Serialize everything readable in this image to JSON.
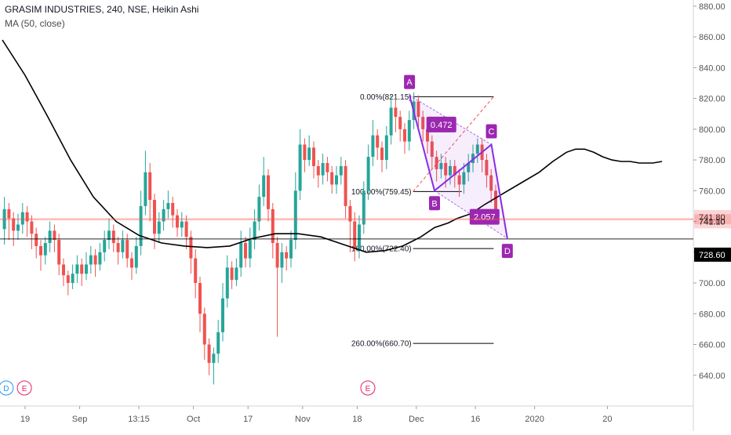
{
  "header": {
    "title": "GRASIM INDUSTRIES, 240, NSE, Heikin Ashi",
    "indicator": "MA (50, close)"
  },
  "colors": {
    "bull": "#26a69a",
    "bear": "#ef5350",
    "ma": "#000000",
    "pattern": "#8a2be2",
    "pattern_label": "#9c27b0",
    "fib": "#000000",
    "price_tag_red": "#ef5350",
    "price_tag_dark": "#000000",
    "axis_text": "#555555",
    "grid_border": "#dddddd"
  },
  "chart_data": {
    "type": "candlestick",
    "ylim": [
      620,
      884
    ],
    "y_ticks": [
      640,
      660,
      680,
      700,
      720,
      740,
      760,
      780,
      800,
      820,
      840,
      860,
      880
    ],
    "y_tick_labels": [
      "640.00",
      "660.00",
      "680.00",
      "700.00",
      "720.00",
      "740.00",
      "760.00",
      "780.00",
      "800.00",
      "820.00",
      "840.00",
      "860.00",
      "880.00"
    ],
    "x_ticks": [
      {
        "label": "19",
        "bar": 5
      },
      {
        "label": "Sep",
        "bar": 17
      },
      {
        "label": "13:15",
        "bar": 30
      },
      {
        "label": "Oct",
        "bar": 42
      },
      {
        "label": "17",
        "bar": 54
      },
      {
        "label": "Nov",
        "bar": 66
      },
      {
        "label": "18",
        "bar": 78
      },
      {
        "label": "Dec",
        "bar": 91
      },
      {
        "label": "16",
        "bar": 104
      },
      {
        "label": "2020",
        "bar": 117
      },
      {
        "label": "20",
        "bar": 133
      }
    ],
    "candles": [
      [
        735,
        748,
        756,
        725
      ],
      [
        748,
        742,
        752,
        728
      ],
      [
        742,
        734,
        746,
        724
      ],
      [
        734,
        738,
        745,
        728
      ],
      [
        738,
        746,
        752,
        732
      ],
      [
        746,
        740,
        750,
        730
      ],
      [
        740,
        732,
        744,
        722
      ],
      [
        732,
        724,
        736,
        716
      ],
      [
        724,
        718,
        728,
        708
      ],
      [
        718,
        726,
        730,
        712
      ],
      [
        726,
        734,
        740,
        720
      ],
      [
        734,
        728,
        738,
        720
      ],
      [
        728,
        712,
        732,
        705
      ],
      [
        712,
        705,
        716,
        698
      ],
      [
        705,
        700,
        708,
        692
      ],
      [
        700,
        706,
        712,
        696
      ],
      [
        706,
        712,
        718,
        700
      ],
      [
        712,
        706,
        716,
        698
      ],
      [
        706,
        712,
        720,
        702
      ],
      [
        712,
        718,
        724,
        706
      ],
      [
        718,
        712,
        722,
        704
      ],
      [
        712,
        720,
        726,
        708
      ],
      [
        720,
        728,
        734,
        714
      ],
      [
        728,
        734,
        742,
        722
      ],
      [
        734,
        726,
        738,
        720
      ],
      [
        726,
        720,
        730,
        712
      ],
      [
        720,
        728,
        734,
        716
      ],
      [
        728,
        716,
        732,
        710
      ],
      [
        716,
        710,
        720,
        702
      ],
      [
        710,
        724,
        730,
        706
      ],
      [
        724,
        750,
        760,
        718
      ],
      [
        750,
        772,
        786,
        744
      ],
      [
        772,
        754,
        778,
        740
      ],
      [
        754,
        732,
        758,
        722
      ],
      [
        732,
        740,
        746,
        726
      ],
      [
        740,
        748,
        754,
        734
      ],
      [
        748,
        752,
        760,
        742
      ],
      [
        752,
        744,
        756,
        736
      ],
      [
        744,
        736,
        748,
        730
      ],
      [
        736,
        740,
        746,
        730
      ],
      [
        740,
        730,
        744,
        722
      ],
      [
        730,
        716,
        734,
        706
      ],
      [
        716,
        700,
        722,
        690
      ],
      [
        700,
        680,
        704,
        668
      ],
      [
        680,
        660,
        684,
        650
      ],
      [
        660,
        648,
        664,
        640
      ],
      [
        648,
        654,
        658,
        634
      ],
      [
        654,
        668,
        676,
        648
      ],
      [
        668,
        690,
        700,
        662
      ],
      [
        690,
        710,
        718,
        684
      ],
      [
        710,
        702,
        714,
        696
      ],
      [
        702,
        710,
        716,
        698
      ],
      [
        710,
        726,
        734,
        704
      ],
      [
        726,
        716,
        730,
        710
      ],
      [
        716,
        728,
        736,
        710
      ],
      [
        728,
        740,
        748,
        722
      ],
      [
        740,
        756,
        764,
        734
      ],
      [
        756,
        770,
        782,
        750
      ],
      [
        770,
        748,
        774,
        740
      ],
      [
        748,
        726,
        752,
        716
      ],
      [
        726,
        710,
        730,
        665
      ],
      [
        710,
        720,
        726,
        700
      ],
      [
        720,
        716,
        724,
        708
      ],
      [
        716,
        728,
        734,
        710
      ],
      [
        728,
        760,
        772,
        722
      ],
      [
        760,
        790,
        800,
        754
      ],
      [
        790,
        780,
        794,
        772
      ],
      [
        780,
        788,
        796,
        776
      ],
      [
        788,
        776,
        792,
        768
      ],
      [
        776,
        770,
        780,
        762
      ],
      [
        770,
        778,
        784,
        764
      ],
      [
        778,
        772,
        782,
        766
      ],
      [
        772,
        764,
        776,
        758
      ],
      [
        764,
        770,
        776,
        758
      ],
      [
        770,
        776,
        782,
        764
      ],
      [
        776,
        750,
        780,
        742
      ],
      [
        750,
        740,
        754,
        720
      ],
      [
        740,
        722,
        746,
        714
      ],
      [
        722,
        738,
        744,
        716
      ],
      [
        738,
        760,
        766,
        732
      ],
      [
        760,
        782,
        790,
        754
      ],
      [
        782,
        796,
        806,
        776
      ],
      [
        796,
        788,
        800,
        780
      ],
      [
        788,
        780,
        792,
        772
      ],
      [
        780,
        796,
        802,
        774
      ],
      [
        796,
        814,
        822,
        790
      ],
      [
        814,
        808,
        820,
        798
      ],
      [
        808,
        800,
        812,
        792
      ],
      [
        800,
        792,
        804,
        784
      ],
      [
        792,
        806,
        812,
        786
      ],
      [
        806,
        818,
        824,
        800
      ],
      [
        818,
        808,
        822,
        800
      ],
      [
        808,
        800,
        812,
        792
      ],
      [
        800,
        792,
        804,
        784
      ],
      [
        792,
        782,
        796,
        774
      ],
      [
        782,
        774,
        786,
        766
      ],
      [
        774,
        778,
        784,
        768
      ],
      [
        778,
        770,
        782,
        762
      ],
      [
        770,
        776,
        780,
        764
      ],
      [
        776,
        770,
        780,
        762
      ],
      [
        770,
        764,
        774,
        756
      ],
      [
        764,
        772,
        778,
        758
      ],
      [
        772,
        778,
        784,
        766
      ],
      [
        778,
        784,
        790,
        772
      ],
      [
        784,
        790,
        794,
        778
      ],
      [
        790,
        780,
        794,
        772
      ],
      [
        780,
        770,
        784,
        762
      ],
      [
        770,
        760,
        774,
        752
      ],
      [
        760,
        748,
        764,
        740
      ]
    ],
    "ma": [
      [
        0,
        858
      ],
      [
        5,
        835
      ],
      [
        10,
        808
      ],
      [
        15,
        780
      ],
      [
        20,
        756
      ],
      [
        25,
        740
      ],
      [
        30,
        731
      ],
      [
        35,
        726
      ],
      [
        40,
        724
      ],
      [
        45,
        723
      ],
      [
        50,
        724
      ],
      [
        55,
        729
      ],
      [
        60,
        732
      ],
      [
        65,
        732
      ],
      [
        70,
        730
      ],
      [
        75,
        725
      ],
      [
        80,
        720
      ],
      [
        84,
        721
      ],
      [
        88,
        724
      ],
      [
        90,
        727
      ],
      [
        92,
        730
      ],
      [
        95,
        736
      ],
      [
        98,
        739
      ],
      [
        100,
        742
      ],
      [
        103,
        745
      ],
      [
        106,
        751
      ],
      [
        110,
        758
      ],
      [
        114,
        765
      ],
      [
        118,
        772
      ],
      [
        121,
        779
      ],
      [
        124,
        785
      ],
      [
        126,
        787
      ],
      [
        128,
        787
      ],
      [
        130,
        785
      ],
      [
        132,
        782
      ],
      [
        134,
        780
      ],
      [
        136,
        779
      ],
      [
        138,
        779
      ],
      [
        140,
        778
      ],
      [
        143,
        778
      ],
      [
        145,
        779
      ]
    ],
    "harmonic": {
      "points": [
        {
          "label": "A",
          "bar": 89.5,
          "value": 822
        },
        {
          "label": "B",
          "bar": 95,
          "value": 760
        },
        {
          "label": "C",
          "bar": 107.5,
          "value": 790
        },
        {
          "label": "D",
          "bar": 111,
          "value": 729
        }
      ],
      "ratios": [
        {
          "label": "0.472",
          "bar": 96.5,
          "value": 803
        },
        {
          "label": "2.057",
          "bar": 106,
          "value": 743
        }
      ]
    },
    "fib_levels": [
      {
        "label": "0.00%(821.15)",
        "value": 821.15,
        "bar_start": 82,
        "bar_end": 108
      },
      {
        "label": "100.00%(759.45)",
        "value": 759.45,
        "bar_start": 82,
        "bar_end": 101
      },
      {
        "label": "160.00%(722.40)",
        "value": 722.4,
        "bar_start": 82,
        "bar_end": 108
      },
      {
        "label": "260.00%(660.70)",
        "value": 660.7,
        "bar_start": 82,
        "bar_end": 108
      }
    ],
    "price_tags": [
      {
        "label": "741.80",
        "value": 741.8,
        "style": "red"
      },
      {
        "label": "741.10",
        "value": 741.1,
        "style": "red"
      },
      {
        "label": "728.60",
        "value": 728.6,
        "style": "dark"
      }
    ],
    "event_markers": [
      {
        "label": "D",
        "bar": 0.5,
        "color": "#2196f3"
      },
      {
        "label": "E",
        "bar": 4.5,
        "color": "#e91e63"
      },
      {
        "label": "E",
        "bar": 80,
        "color": "#e91e63"
      }
    ]
  }
}
